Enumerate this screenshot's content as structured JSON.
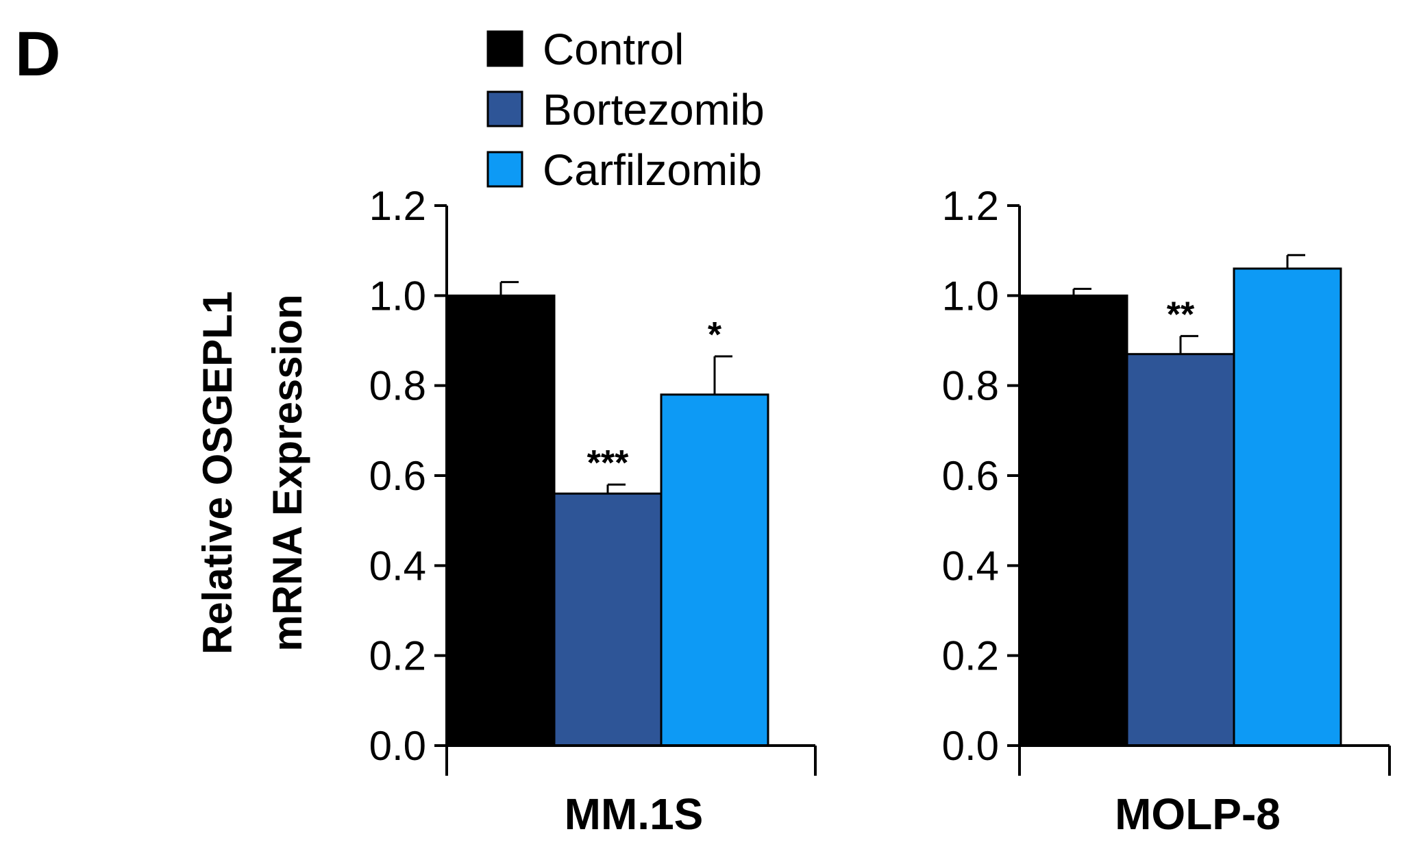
{
  "panel_label": "D",
  "colors": {
    "Control": "#000000",
    "Bortezomib": "#2e5597",
    "Carfilzomib": "#0d9af5",
    "axis": "#000000"
  },
  "chart_data": [
    {
      "type": "bar",
      "title": "",
      "xlabel": "MM.1S",
      "ylabel": [
        "Relative OSGEPL1",
        "mRNA Expression"
      ],
      "ylim": [
        0,
        1.2
      ],
      "yticks": [
        "0.0",
        "0.2",
        "0.4",
        "0.6",
        "0.8",
        "1.0",
        "1.2"
      ],
      "series": [
        {
          "name": "Control",
          "value": 1.0,
          "error": 0.03,
          "sig": ""
        },
        {
          "name": "Bortezomib",
          "value": 0.56,
          "error": 0.02,
          "sig": "***"
        },
        {
          "name": "Carfilzomib",
          "value": 0.78,
          "error": 0.085,
          "sig": "*"
        }
      ]
    },
    {
      "type": "bar",
      "title": "",
      "xlabel": "MOLP-8",
      "ylabel": "",
      "ylim": [
        0,
        1.2
      ],
      "yticks": [
        "0.0",
        "0.2",
        "0.4",
        "0.6",
        "0.8",
        "1.0",
        "1.2"
      ],
      "series": [
        {
          "name": "Control",
          "value": 1.0,
          "error": 0.015,
          "sig": ""
        },
        {
          "name": "Bortezomib",
          "value": 0.87,
          "error": 0.04,
          "sig": "**"
        },
        {
          "name": "Carfilzomib",
          "value": 1.06,
          "error": 0.03,
          "sig": ""
        }
      ]
    }
  ],
  "legend": [
    {
      "label": "Control",
      "color": "#000000"
    },
    {
      "label": "Bortezomib",
      "color": "#2e5597"
    },
    {
      "label": "Carfilzomib",
      "color": "#0d9af5"
    }
  ]
}
